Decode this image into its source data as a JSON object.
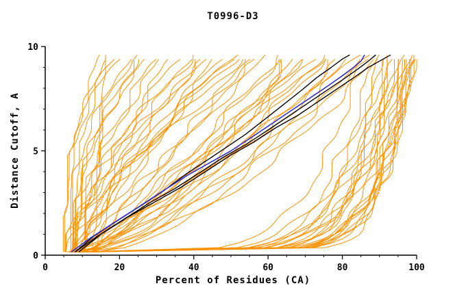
{
  "page": {
    "title": "T0996-D3"
  },
  "chart_data": {
    "type": "line",
    "title": "T0996-D3",
    "xlabel": "Percent of Residues (CA)",
    "ylabel": "Distance Cutoff, A",
    "xlim": [
      0,
      100
    ],
    "ylim": [
      0,
      10
    ],
    "x_ticks": [
      0,
      20,
      40,
      60,
      80,
      100
    ],
    "x_minor_step": 5,
    "y_ticks": [
      0,
      5,
      10
    ],
    "y_minor_step": 1,
    "grid": false,
    "legend": "none",
    "colors": {
      "ensemble": "#ff9100",
      "highlight": "#000000",
      "selected": "#3030d0"
    },
    "curve_y_range": [
      0.15,
      9.6
    ],
    "series": [
      {
        "name": "model-black-1",
        "color": "#000000",
        "width": 1.4,
        "points": [
          [
            8,
            0.15
          ],
          [
            13,
            0.9
          ],
          [
            19,
            1.6
          ],
          [
            26,
            2.4
          ],
          [
            32,
            3.1
          ],
          [
            38,
            3.9
          ],
          [
            44,
            4.6
          ],
          [
            49,
            5.2
          ],
          [
            54,
            5.8
          ],
          [
            59,
            6.5
          ],
          [
            64,
            7.2
          ],
          [
            69,
            7.9
          ],
          [
            73,
            8.5
          ],
          [
            77,
            9.0
          ],
          [
            80,
            9.4
          ],
          [
            82,
            9.6
          ]
        ]
      },
      {
        "name": "model-black-2",
        "color": "#000000",
        "width": 1.4,
        "points": [
          [
            8,
            0.15
          ],
          [
            14,
            0.9
          ],
          [
            21,
            1.7
          ],
          [
            28,
            2.5
          ],
          [
            35,
            3.2
          ],
          [
            42,
            4.0
          ],
          [
            48,
            4.7
          ],
          [
            54,
            5.3
          ],
          [
            60,
            6.0
          ],
          [
            65,
            6.6
          ],
          [
            70,
            7.2
          ],
          [
            75,
            7.8
          ],
          [
            80,
            8.4
          ],
          [
            84,
            8.9
          ],
          [
            87,
            9.3
          ],
          [
            89,
            9.6
          ]
        ]
      },
      {
        "name": "model-black-3",
        "color": "#000000",
        "width": 1.4,
        "points": [
          [
            9,
            0.15
          ],
          [
            15,
            1.0
          ],
          [
            22,
            1.8
          ],
          [
            30,
            2.6
          ],
          [
            37,
            3.3
          ],
          [
            44,
            4.1
          ],
          [
            50,
            4.8
          ],
          [
            56,
            5.4
          ],
          [
            62,
            6.1
          ],
          [
            68,
            6.7
          ],
          [
            73,
            7.3
          ],
          [
            78,
            7.9
          ],
          [
            83,
            8.5
          ],
          [
            87,
            9.0
          ],
          [
            91,
            9.4
          ],
          [
            93,
            9.6
          ]
        ]
      },
      {
        "name": "model-blue",
        "color": "#3030d0",
        "width": 1.6,
        "points": [
          [
            7,
            0.15
          ],
          [
            12,
            0.8
          ],
          [
            18,
            1.5
          ],
          [
            25,
            2.3
          ],
          [
            31,
            3.0
          ],
          [
            38,
            3.8
          ],
          [
            44,
            4.4
          ],
          [
            50,
            5.0
          ],
          [
            56,
            5.7
          ],
          [
            61,
            6.3
          ],
          [
            66,
            6.9
          ],
          [
            71,
            7.5
          ],
          [
            76,
            8.1
          ],
          [
            80,
            8.6
          ],
          [
            83,
            9.0
          ],
          [
            85,
            9.3
          ],
          [
            86,
            9.6
          ]
        ]
      }
    ],
    "ensemble": {
      "color": "#ff9100",
      "width": 1,
      "curves": [
        [
          6,
          15,
          2.6,
          0.5,
          0.7
        ],
        [
          7,
          17,
          2.2,
          1.2,
          0.9
        ],
        [
          5,
          20,
          2.8,
          2.1,
          0.8
        ],
        [
          8,
          22,
          2.0,
          3.0,
          1.0
        ],
        [
          6,
          24,
          2.4,
          4.2,
          0.8
        ],
        [
          9,
          26,
          1.9,
          5.1,
          1.1
        ],
        [
          7,
          28,
          2.2,
          0.9,
          0.9
        ],
        [
          10,
          30,
          1.8,
          1.7,
          1.2
        ],
        [
          5,
          18,
          3.0,
          2.6,
          0.7
        ],
        [
          8,
          25,
          2.1,
          3.8,
          0.9
        ],
        [
          13,
          16,
          1.5,
          4.5,
          0.5
        ],
        [
          6,
          32,
          1.6,
          0.3,
          1.1
        ],
        [
          9,
          34,
          1.4,
          1.1,
          1.3
        ],
        [
          7,
          36,
          1.5,
          2.0,
          1.0
        ],
        [
          11,
          38,
          1.3,
          2.9,
          1.2
        ],
        [
          6,
          40,
          1.5,
          3.7,
          1.4
        ],
        [
          10,
          42,
          1.2,
          4.6,
          1.1
        ],
        [
          8,
          44,
          1.6,
          5.4,
          1.2
        ],
        [
          12,
          46,
          1.1,
          0.6,
          1.2
        ],
        [
          7,
          48,
          1.4,
          1.5,
          1.0
        ],
        [
          9,
          50,
          1.2,
          2.3,
          1.3
        ],
        [
          11,
          52,
          1.5,
          3.2,
          1.1
        ],
        [
          6,
          54,
          1.3,
          4.0,
          1.1
        ],
        [
          10,
          56,
          1.0,
          4.9,
          1.4
        ],
        [
          8,
          58,
          1.4,
          5.7,
          1.2
        ],
        [
          12,
          60,
          1.1,
          0.2,
          1.0
        ],
        [
          7,
          45,
          1.6,
          1.0,
          1.2
        ],
        [
          9,
          55,
          0.9,
          1.9,
          1.3
        ],
        [
          11,
          50,
          1.5,
          2.7,
          1.1
        ],
        [
          8,
          62,
          0.8,
          3.5,
          1.3
        ],
        [
          10,
          64,
          0.9,
          4.4,
          1.2
        ],
        [
          7,
          66,
          0.7,
          5.2,
          1.4
        ],
        [
          12,
          68,
          0.85,
          0.4,
          1.1
        ],
        [
          9,
          70,
          0.75,
          1.3,
          1.3
        ],
        [
          11,
          72,
          0.9,
          2.2,
          1.2
        ],
        [
          8,
          74,
          0.65,
          3.1,
          1.4
        ],
        [
          13,
          76,
          0.8,
          3.9,
          1.1
        ],
        [
          10,
          78,
          0.6,
          4.8,
          1.3
        ],
        [
          7,
          80,
          0.75,
          5.6,
          1.2
        ],
        [
          12,
          82,
          0.65,
          0.7,
          1.3
        ],
        [
          9,
          84,
          0.8,
          1.6,
          1.1
        ],
        [
          11,
          86,
          0.6,
          2.4,
          1.4
        ],
        [
          8,
          75,
          0.9,
          3.3,
          1.2
        ],
        [
          13,
          70,
          1.0,
          4.1,
          1.0
        ],
        [
          10,
          65,
          0.6,
          5.0,
          1.3
        ],
        [
          9,
          88,
          0.7,
          5.8,
          1.2
        ],
        [
          12,
          90,
          0.6,
          0.8,
          1.2
        ],
        [
          7,
          85,
          0.18,
          1.4,
          1.0
        ],
        [
          9,
          88,
          0.16,
          2.5,
          1.2
        ],
        [
          11,
          90,
          0.14,
          3.6,
          1.0
        ],
        [
          8,
          92,
          0.15,
          4.7,
          1.1
        ],
        [
          10,
          94,
          0.12,
          5.5,
          1.3
        ],
        [
          12,
          96,
          0.13,
          0.1,
          1.0
        ],
        [
          7,
          97,
          0.1,
          1.0,
          1.2
        ],
        [
          9,
          99,
          0.11,
          2.0,
          1.1
        ],
        [
          11,
          98,
          0.09,
          3.0,
          1.0
        ],
        [
          8,
          96,
          0.14,
          4.0,
          1.2
        ],
        [
          10,
          95,
          0.12,
          5.0,
          1.0
        ],
        [
          13,
          93,
          0.16,
          6.0,
          1.1
        ],
        [
          6,
          91,
          0.1,
          0.5,
          1.3
        ],
        [
          9,
          96,
          0.09,
          1.5,
          1.0
        ],
        [
          11,
          98,
          0.11,
          2.6,
          1.1
        ],
        [
          7,
          94,
          0.13,
          3.7,
          1.2
        ],
        [
          10,
          99,
          0.1,
          4.8,
          1.0
        ],
        [
          12,
          98,
          0.08,
          5.9,
          1.1
        ],
        [
          8,
          90,
          0.15,
          0.9,
          1.0
        ],
        [
          9,
          93,
          0.12,
          1.8,
          1.3
        ],
        [
          11,
          97,
          0.1,
          2.8,
          1.0
        ],
        [
          7,
          99,
          0.09,
          3.9,
          1.2
        ],
        [
          10,
          97,
          0.11,
          5.1,
          1.1
        ],
        [
          13,
          99,
          0.1,
          6.1,
          1.0
        ]
      ]
    }
  }
}
